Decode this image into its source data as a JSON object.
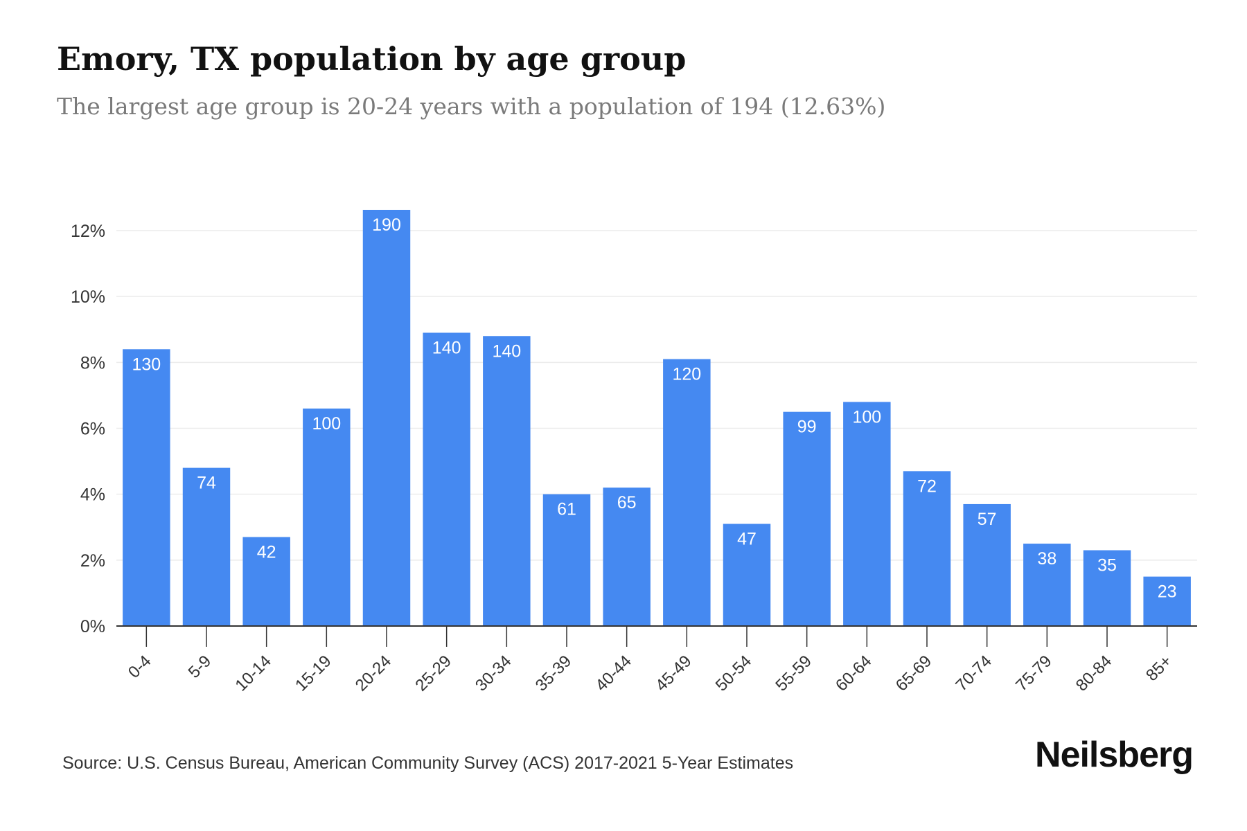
{
  "header": {
    "title": "Emory, TX population by age group",
    "subtitle": "The largest age group is 20-24 years with a population of 194 (12.63%)"
  },
  "footer": {
    "source": "Source: U.S. Census Bureau, American Community Survey (ACS) 2017-2021 5-Year Estimates",
    "logo": "Neilsberg"
  },
  "colors": {
    "bar": "#4589f1",
    "bar_label": "#ffffff",
    "grid": "#ececec",
    "axis": "#333333",
    "tick_text": "#333333"
  },
  "chart_data": {
    "type": "bar",
    "categories": [
      "0-4",
      "5-9",
      "10-14",
      "15-19",
      "20-24",
      "25-29",
      "30-34",
      "35-39",
      "40-44",
      "45-49",
      "50-54",
      "55-59",
      "60-64",
      "65-69",
      "70-74",
      "75-79",
      "80-84",
      "85+"
    ],
    "values": [
      8.4,
      4.8,
      2.7,
      6.6,
      12.63,
      8.9,
      8.8,
      4.0,
      4.2,
      8.1,
      3.1,
      6.5,
      6.8,
      4.7,
      3.7,
      2.5,
      2.3,
      1.5
    ],
    "data_labels": [
      "130",
      "74",
      "42",
      "100",
      "190",
      "140",
      "140",
      "61",
      "65",
      "120",
      "47",
      "99",
      "100",
      "72",
      "57",
      "38",
      "35",
      "23"
    ],
    "y_ticks": [
      0,
      2,
      4,
      6,
      8,
      10,
      12
    ],
    "y_tick_labels": [
      "0%",
      "2%",
      "4%",
      "6%",
      "8%",
      "10%",
      "12%"
    ],
    "ylim": [
      0,
      12.63
    ],
    "xlabel": "",
    "ylabel": "",
    "grid": true,
    "legend": "none"
  }
}
